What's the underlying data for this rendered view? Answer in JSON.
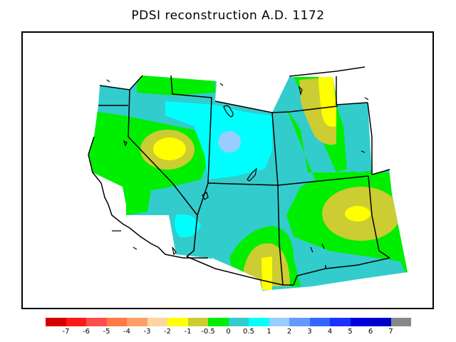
{
  "title": "PDSI reconstruction A.D. 1172",
  "legend": {
    "colors": [
      "#d40000",
      "#ff1a1a",
      "#ff4d4d",
      "#ff7a45",
      "#ffa066",
      "#ffd4a0",
      "#ffff00",
      "#cccc33",
      "#00ee00",
      "#33cccc",
      "#00ffff",
      "#99ccff",
      "#6699ff",
      "#3366ff",
      "#1a33ff",
      "#0000dd",
      "#0000cc",
      "#888888"
    ],
    "labels": [
      "-7",
      "-6",
      "-5",
      "-4",
      "-3",
      "-2",
      "-1",
      "-0.5",
      "0",
      "0.5",
      "1",
      "2",
      "3",
      "4",
      "5",
      "6",
      "7"
    ]
  },
  "colors": {
    "turquoise": "#33cccc",
    "cyan": "#00ffff",
    "lightblue": "#99ccff",
    "green": "#00ee00",
    "olive": "#cccc33",
    "yellow": "#ffff00",
    "borders": "#000000"
  }
}
